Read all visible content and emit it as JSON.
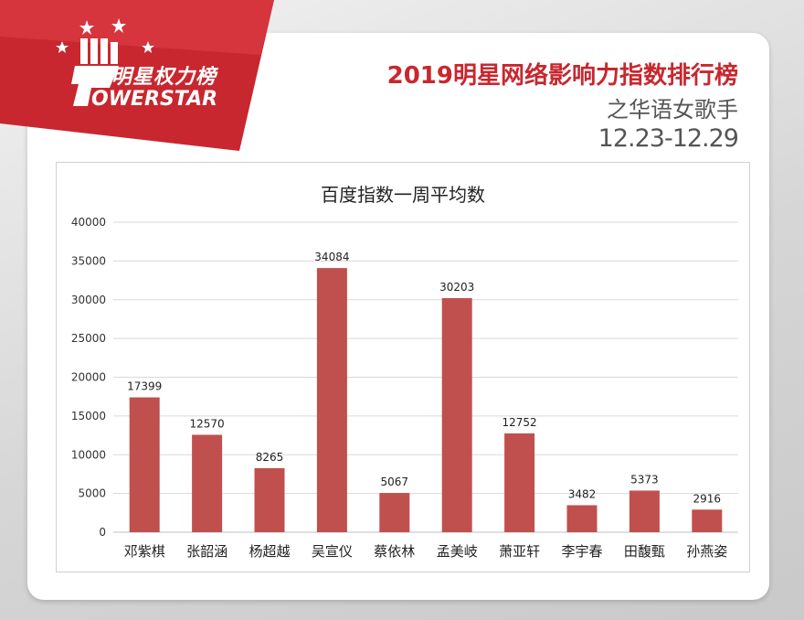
{
  "logo": {
    "cn_text": "明星权力榜",
    "en_text": "OWERSTAR"
  },
  "header": {
    "title": "2019明星网络影响力指数排行榜",
    "subtitle": "之华语女歌手",
    "date_range": "12.23-12.29"
  },
  "colors": {
    "brand_red": "#c8272f",
    "bar": "#c0504d"
  },
  "chart_data": {
    "type": "bar",
    "title": "百度指数一周平均数",
    "categories": [
      "邓紫棋",
      "张韶涵",
      "杨超越",
      "吴宣仪",
      "蔡依林",
      "孟美岐",
      "萧亚轩",
      "李宇春",
      "田馥甄",
      "孙燕姿"
    ],
    "values": [
      17399,
      12570,
      8265,
      34084,
      5067,
      30203,
      12752,
      3482,
      5373,
      2916
    ],
    "ylim": [
      0,
      40000
    ],
    "yticks": [
      0,
      5000,
      10000,
      15000,
      20000,
      25000,
      30000,
      35000,
      40000
    ],
    "grid": true,
    "xlabel": "",
    "ylabel": ""
  }
}
